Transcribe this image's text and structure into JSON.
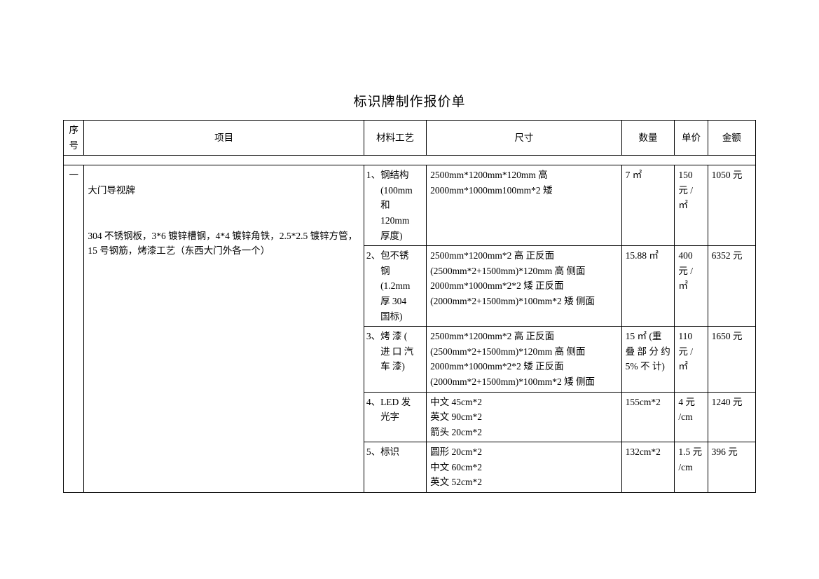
{
  "title": "标识牌制作报价单",
  "headers": {
    "seq": "序号",
    "item": "项目",
    "material": "材料工艺",
    "size": "尺寸",
    "qty": "数量",
    "price": "单价",
    "amount": "金额"
  },
  "row_seq": "一",
  "row_item_line1": "大门导视牌",
  "row_item_line2": "304 不锈钢板，3*6 镀锌槽钢，4*4 镀锌角铁，2.5*2.5 镀锌方管，15 号钢筋，烤漆工艺（东西大门外各一个）",
  "mats": [
    {
      "num": "1、",
      "text": "钢结构 (100mm 和 120mm 厚度)",
      "size": "2500mm*1200mm*120mm 高\n2000mm*1000mm100mm*2 矮",
      "qty": "7 ㎡",
      "price": "150 元 / ㎡",
      "amount": "1050 元"
    },
    {
      "num": "2、",
      "text": "包不锈钢 (1.2mm 厚 304 国标)",
      "size": "2500mm*1200mm*2 高 正反面\n(2500mm*2+1500mm)*120mm 高 侧面\n2000mm*1000mm*2*2 矮 正反面\n(2000mm*2+1500mm)*100mm*2 矮 侧面",
      "qty": "15.88 ㎡",
      "price": "400 元 / ㎡",
      "amount": "6352 元"
    },
    {
      "num": "3、",
      "text": "烤 漆 ( 进 口 汽 车 漆)",
      "size": "2500mm*1200mm*2 高 正反面\n(2500mm*2+1500mm)*120mm 高 侧面\n2000mm*1000mm*2*2 矮 正反面\n(2000mm*2+1500mm)*100mm*2 矮 侧面",
      "qty": "15 ㎡ (重 叠 部 分 约 5% 不 计)",
      "price": "110 元 / ㎡",
      "amount": "1650 元"
    },
    {
      "num": "4、",
      "text": " LED 发光字",
      "size": "中文 45cm*2\n英文 90cm*2\n箭头 20cm*2",
      "qty": "155cm*2",
      "price": "4 元 /cm",
      "amount": "1240 元"
    },
    {
      "num": "5、",
      "text": "标识",
      "size": "圆形 20cm*2\n中文 60cm*2\n英文 52cm*2",
      "qty": "132cm*2",
      "price": "1.5 元 /cm",
      "amount": "396 元"
    }
  ]
}
